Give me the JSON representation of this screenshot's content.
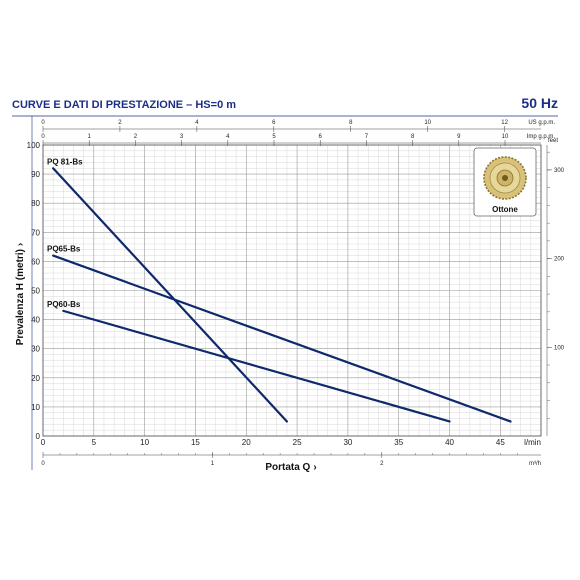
{
  "header": {
    "title": "CURVE E DATI DI PRESTAZIONE  –  HS=0 m",
    "frequency": "50 Hz"
  },
  "inset": {
    "label": "Ottone",
    "icon": "brass-impeller-icon"
  },
  "colors": {
    "title": "#1b2f86",
    "curve": "#0f2a6b",
    "grid_major": "#9a9a9a",
    "grid_minor": "#cfcfcf",
    "inset_gold": "#c9b46a"
  },
  "chart_data": {
    "type": "line",
    "title": "",
    "xlabel": "Portata Q",
    "ylabel": "Prevalenza H (metri)",
    "xlim": [
      0,
      49
    ],
    "ylim": [
      0,
      100
    ],
    "grid": true,
    "x_unit": "l/min",
    "x_ticks": [
      0,
      5,
      10,
      15,
      20,
      25,
      30,
      35,
      40,
      45
    ],
    "y_ticks": [
      0,
      10,
      20,
      30,
      40,
      50,
      60,
      70,
      80,
      90,
      100
    ],
    "series": [
      {
        "name": "PQ 81-Bs",
        "x": [
          1,
          24
        ],
        "y": [
          92,
          5
        ]
      },
      {
        "name": "PQ65-Bs",
        "x": [
          1,
          46
        ],
        "y": [
          62,
          5
        ]
      },
      {
        "name": "PQ60-Bs",
        "x": [
          2,
          40
        ],
        "y": [
          43,
          5
        ]
      }
    ],
    "secondary_axes": {
      "bottom_m3h": {
        "unit": "m³/h",
        "ticks": [
          0,
          1,
          2
        ]
      },
      "top_us_gpm": {
        "unit": "US g.p.m.",
        "ticks": [
          0,
          2,
          4,
          6,
          8,
          10,
          12
        ]
      },
      "top_imp_gpm": {
        "unit": "Imp g.p.m.",
        "ticks": [
          0,
          1,
          2,
          3,
          4,
          5,
          6,
          7,
          8,
          9,
          10
        ]
      },
      "right_feet": {
        "unit": "feet",
        "ticks": [
          100,
          200,
          300
        ]
      }
    }
  }
}
